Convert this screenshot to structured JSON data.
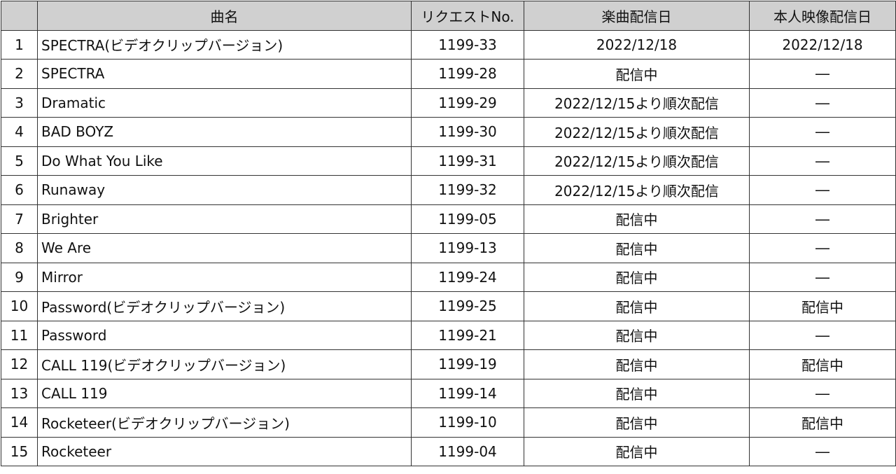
{
  "headers": [
    "",
    "曲名",
    "リクエストNo.",
    "楽曲配信日",
    "本人映像配信日"
  ],
  "rows": [
    [
      "1",
      "SPECTRA(ビデオクリップバージョン)",
      "1199-33",
      "2022/12/18",
      "2022/12/18"
    ],
    [
      "2",
      "SPECTRA",
      "1199-28",
      "配信中",
      "―"
    ],
    [
      "3",
      "Dramatic",
      "1199-29",
      "2022/12/15より順次配信",
      "―"
    ],
    [
      "4",
      "BAD BOYZ",
      "1199-30",
      "2022/12/15より順次配信",
      "―"
    ],
    [
      "5",
      "Do What You Like",
      "1199-31",
      "2022/12/15より順次配信",
      "―"
    ],
    [
      "6",
      "Runaway",
      "1199-32",
      "2022/12/15より順次配信",
      "―"
    ],
    [
      "7",
      "Brighter",
      "1199-05",
      "配信中",
      "―"
    ],
    [
      "8",
      "We Are",
      "1199-13",
      "配信中",
      "―"
    ],
    [
      "9",
      "Mirror",
      "1199-24",
      "配信中",
      "―"
    ],
    [
      "10",
      "Password(ビデオクリップバージョン)",
      "1199-25",
      "配信中",
      "配信中"
    ],
    [
      "11",
      "Password",
      "1199-21",
      "配信中",
      "―"
    ],
    [
      "12",
      "CALL 119(ビデオクリップバージョン)",
      "1199-19",
      "配信中",
      "配信中"
    ],
    [
      "13",
      "CALL 119",
      "1199-14",
      "配信中",
      "―"
    ],
    [
      "14",
      "Rocketeer(ビデオクリップバージョン)",
      "1199-10",
      "配信中",
      "配信中"
    ],
    [
      "15",
      "Rocketeer",
      "1199-04",
      "配信中",
      "―"
    ]
  ]
}
